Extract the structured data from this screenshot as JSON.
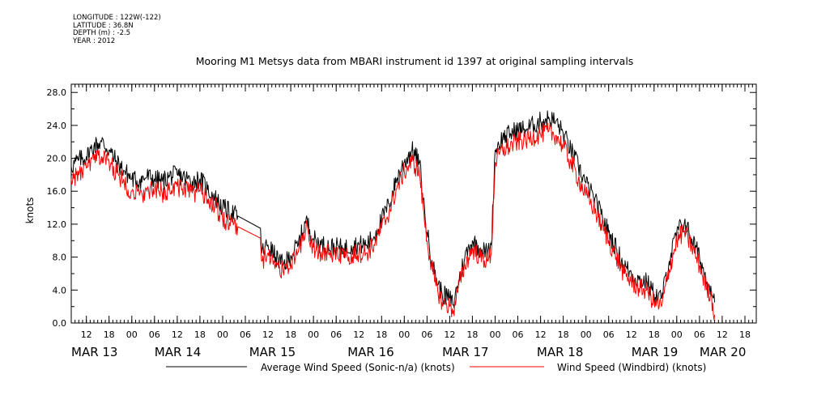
{
  "metadata": {
    "longitude": "LONGITUDE : 122W(-122)",
    "latitude": "LATITUDE : 36.8N",
    "depth": "DEPTH (m) : -2.5",
    "year": "YEAR : 2012"
  },
  "chart_data": {
    "type": "line",
    "title": "Mooring M1 Metsys data from MBARI instrument id 1397 at original sampling intervals",
    "ylabel": "knots",
    "xlabel": "",
    "ylim": [
      0,
      29
    ],
    "xlim": [
      8,
      189
    ],
    "x_units": "hours since 2012-03-13 00:00",
    "yticks": [
      {
        "value": 0,
        "label": "0.0"
      },
      {
        "value": 4,
        "label": "4.0"
      },
      {
        "value": 8,
        "label": "8.0"
      },
      {
        "value": 12,
        "label": "12.0"
      },
      {
        "value": 16,
        "label": "16.0"
      },
      {
        "value": 20,
        "label": "20.0"
      },
      {
        "value": 24,
        "label": "24.0"
      },
      {
        "value": 28,
        "label": "28.0"
      }
    ],
    "hour_ticks": [
      {
        "x": 12,
        "label": "12"
      },
      {
        "x": 18,
        "label": "18"
      },
      {
        "x": 24,
        "label": "00"
      },
      {
        "x": 30,
        "label": "06"
      },
      {
        "x": 36,
        "label": "12"
      },
      {
        "x": 42,
        "label": "18"
      },
      {
        "x": 48,
        "label": "00"
      },
      {
        "x": 54,
        "label": "06"
      },
      {
        "x": 60,
        "label": "12"
      },
      {
        "x": 66,
        "label": "18"
      },
      {
        "x": 72,
        "label": "00"
      },
      {
        "x": 78,
        "label": "06"
      },
      {
        "x": 84,
        "label": "12"
      },
      {
        "x": 90,
        "label": "18"
      },
      {
        "x": 96,
        "label": "00"
      },
      {
        "x": 102,
        "label": "06"
      },
      {
        "x": 108,
        "label": "12"
      },
      {
        "x": 114,
        "label": "18"
      },
      {
        "x": 120,
        "label": "00"
      },
      {
        "x": 126,
        "label": "06"
      },
      {
        "x": 132,
        "label": "12"
      },
      {
        "x": 138,
        "label": "18"
      },
      {
        "x": 144,
        "label": "00"
      },
      {
        "x": 150,
        "label": "06"
      },
      {
        "x": 156,
        "label": "12"
      },
      {
        "x": 162,
        "label": "18"
      },
      {
        "x": 168,
        "label": "00"
      },
      {
        "x": 174,
        "label": "06"
      },
      {
        "x": 180,
        "label": "12"
      },
      {
        "x": 186,
        "label": "18"
      }
    ],
    "day_labels": [
      {
        "x": 8,
        "label": "MAR 13"
      },
      {
        "x": 30,
        "label": "MAR 14"
      },
      {
        "x": 55,
        "label": "MAR 15"
      },
      {
        "x": 81,
        "label": "MAR 16"
      },
      {
        "x": 106,
        "label": "MAR 17"
      },
      {
        "x": 131,
        "label": "MAR 18"
      },
      {
        "x": 156,
        "label": "MAR 19"
      },
      {
        "x": 174,
        "label": "MAR 20"
      }
    ],
    "legend_placement": "bottom",
    "series": [
      {
        "name": "Average Wind Speed (Sonic-n/a) (knots)",
        "color": "#000000",
        "x": [
          8,
          10,
          12,
          14,
          16,
          18,
          20,
          22,
          24,
          26,
          28,
          30,
          32,
          34,
          36,
          38,
          40,
          42,
          44,
          46,
          48,
          52,
          58,
          58.3,
          60,
          62,
          64,
          66,
          68,
          70,
          72,
          74,
          76,
          78,
          80,
          82,
          84,
          86,
          88,
          90,
          92,
          94,
          96,
          98,
          100,
          101,
          102,
          104,
          106,
          108,
          109,
          110,
          112,
          114,
          116,
          118,
          119,
          120,
          122,
          124,
          126,
          128,
          130,
          132,
          134,
          136,
          138,
          140,
          142,
          144,
          146,
          148,
          150,
          152,
          154,
          156,
          158,
          160,
          162,
          164,
          166,
          168,
          170,
          172,
          174,
          176,
          177,
          178
        ],
        "y": [
          19,
          19.8,
          20.2,
          21.5,
          22,
          21,
          19.5,
          18.5,
          17.5,
          17.2,
          17.8,
          17.5,
          17.2,
          17.8,
          18,
          17.6,
          17.2,
          17.5,
          16.2,
          15.2,
          14,
          13,
          11.5,
          8.5,
          9.5,
          8,
          7,
          8.2,
          9.5,
          12.5,
          10.2,
          9.5,
          9.3,
          9.2,
          9,
          9.4,
          9.5,
          9.5,
          10.5,
          12.5,
          14.5,
          17.5,
          19.5,
          21,
          19.5,
          15,
          11,
          6,
          3.5,
          3,
          2.2,
          4.5,
          8,
          10,
          9,
          8.5,
          9.5,
          21,
          22.5,
          23,
          23.5,
          23.5,
          24,
          24.5,
          24.8,
          24.5,
          23,
          21,
          19,
          17,
          15.2,
          13.2,
          11,
          9,
          7,
          6,
          5.2,
          5,
          3.5,
          3,
          7.5,
          11,
          12.2,
          10.2,
          8,
          5,
          4.5,
          2.5
        ]
      },
      {
        "name": "Wind Speed (Windbird) (knots)",
        "color": "#ff0000",
        "x": [
          8,
          10,
          12,
          14,
          16,
          18,
          20,
          22,
          24,
          26,
          28,
          30,
          32,
          34,
          36,
          38,
          40,
          42,
          44,
          46,
          48,
          52,
          58,
          58.3,
          60,
          62,
          64,
          66,
          68,
          70,
          72,
          74,
          76,
          78,
          80,
          82,
          84,
          86,
          88,
          90,
          92,
          94,
          96,
          98,
          100,
          101,
          102,
          104,
          106,
          108,
          109,
          110,
          112,
          114,
          116,
          118,
          119,
          120,
          122,
          124,
          126,
          128,
          130,
          132,
          134,
          136,
          138,
          140,
          142,
          144,
          146,
          148,
          150,
          152,
          154,
          156,
          158,
          160,
          162,
          164,
          166,
          168,
          170,
          172,
          174,
          176,
          177,
          178
        ],
        "y": [
          17.5,
          18,
          18.8,
          19.8,
          20.2,
          19.5,
          18.2,
          17,
          16,
          15.5,
          16,
          16,
          15.8,
          16.2,
          16.6,
          16.2,
          15.8,
          16,
          15,
          14.2,
          12.5,
          11.7,
          10.3,
          7.5,
          8.5,
          7.2,
          6.2,
          7.2,
          8.6,
          11.5,
          9.2,
          8.6,
          8.4,
          8.2,
          8,
          8.4,
          8.5,
          8.5,
          9.5,
          11.5,
          13.5,
          16.3,
          18.4,
          19.6,
          18.3,
          14,
          10,
          5,
          2.5,
          2,
          1.5,
          3.8,
          7,
          9,
          8,
          7.5,
          8.5,
          19.5,
          21,
          21.5,
          22,
          22.2,
          22.6,
          23,
          23.2,
          22.8,
          21.5,
          19.5,
          17.5,
          15.5,
          14,
          12,
          10,
          8,
          6,
          5,
          4.2,
          4,
          2.5,
          2,
          6.5,
          10,
          11.2,
          9.2,
          7,
          4,
          3.5,
          1
        ]
      }
    ]
  }
}
